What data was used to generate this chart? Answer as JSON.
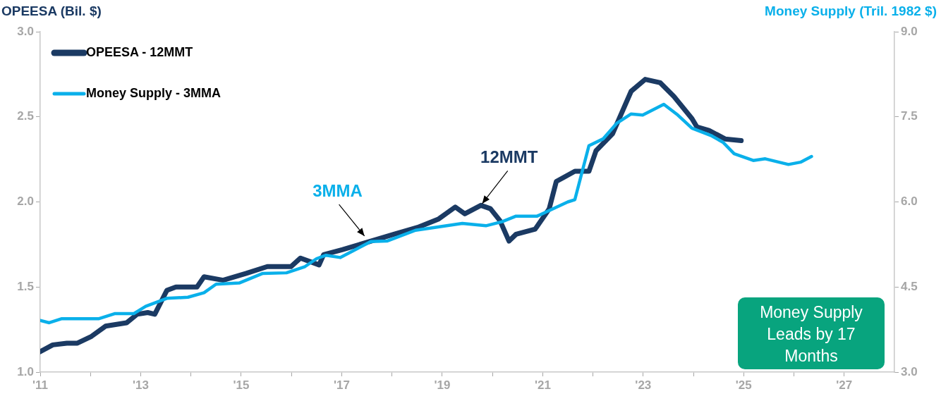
{
  "chart_data": {
    "type": "line",
    "ylabel": "OPEESA (Bil. $)",
    "y2label": "Money Supply (Tril. 1982 $)",
    "xlim": [
      2011,
      2028
    ],
    "xticks": [
      {
        "value": 2011,
        "label": "'11"
      },
      {
        "value": 2012,
        "label": null
      },
      {
        "value": 2013,
        "label": "'13"
      },
      {
        "value": 2014,
        "label": null
      },
      {
        "value": 2015,
        "label": "'15"
      },
      {
        "value": 2016,
        "label": null
      },
      {
        "value": 2017,
        "label": "'17"
      },
      {
        "value": 2018,
        "label": null
      },
      {
        "value": 2019,
        "label": "'19"
      },
      {
        "value": 2020,
        "label": null
      },
      {
        "value": 2021,
        "label": "'21"
      },
      {
        "value": 2022,
        "label": null
      },
      {
        "value": 2023,
        "label": "'23"
      },
      {
        "value": 2024,
        "label": null
      },
      {
        "value": 2025,
        "label": "'25"
      },
      {
        "value": 2026,
        "label": null
      },
      {
        "value": 2027,
        "label": "'27"
      }
    ],
    "ylim": [
      1.0,
      3.0
    ],
    "yticks": [
      {
        "value": 1.0,
        "label": "1.0"
      },
      {
        "value": 1.5,
        "label": "1.5"
      },
      {
        "value": 2.0,
        "label": "2.0"
      },
      {
        "value": 2.5,
        "label": "2.5"
      },
      {
        "value": 3.0,
        "label": "3.0"
      }
    ],
    "y2lim": [
      3.0,
      9.0
    ],
    "y2ticks": [
      {
        "value": 3.0,
        "label": "3.0"
      },
      {
        "value": 4.5,
        "label": "4.5"
      },
      {
        "value": 6.0,
        "label": "6.0"
      },
      {
        "value": 7.5,
        "label": "7.5"
      },
      {
        "value": 9.0,
        "label": "9.0"
      }
    ],
    "legend": "top left",
    "grid": false,
    "series": [
      {
        "name": "OPEESA - 12MMT",
        "color": "#1b3a63",
        "x": [
          2011.0,
          2011.25,
          2011.53,
          2011.74,
          2012.02,
          2012.3,
          2012.72,
          2012.93,
          2013.14,
          2013.28,
          2013.52,
          2013.7,
          2014.12,
          2014.26,
          2014.64,
          2015.1,
          2015.52,
          2015.99,
          2016.18,
          2016.55,
          2016.64,
          2017.02,
          2018.04,
          2018.51,
          2018.93,
          2019.26,
          2019.45,
          2019.77,
          2019.96,
          2020.15,
          2020.33,
          2020.47,
          2020.85,
          2021.13,
          2021.27,
          2021.64,
          2021.92,
          2022.06,
          2022.39,
          2022.76,
          2023.04,
          2023.34,
          2023.61,
          2023.97,
          2024.07,
          2024.31,
          2024.63,
          2024.95
        ],
        "values": [
          1.12,
          1.16,
          1.17,
          1.17,
          1.21,
          1.27,
          1.29,
          1.34,
          1.35,
          1.34,
          1.48,
          1.5,
          1.5,
          1.56,
          1.54,
          1.58,
          1.62,
          1.62,
          1.67,
          1.63,
          1.69,
          1.72,
          1.81,
          1.85,
          1.9,
          1.97,
          1.93,
          1.98,
          1.96,
          1.89,
          1.77,
          1.81,
          1.84,
          1.96,
          2.12,
          2.18,
          2.18,
          2.3,
          2.4,
          2.65,
          2.72,
          2.7,
          2.62,
          2.49,
          2.44,
          2.42,
          2.37,
          2.36
        ]
      },
      {
        "name": "Money Supply - 3MMA",
        "color": "#0ab0ea",
        "axis": "y2",
        "x": [
          2011.0,
          2011.18,
          2011.42,
          2012.16,
          2012.48,
          2012.86,
          2013.1,
          2013.52,
          2013.94,
          2014.26,
          2014.5,
          2014.96,
          2015.43,
          2015.9,
          2016.27,
          2016.5,
          2016.69,
          2016.97,
          2017.58,
          2017.9,
          2018.47,
          2019.4,
          2019.87,
          2020.19,
          2020.47,
          2020.89,
          2021.5,
          2021.64,
          2021.92,
          2022.2,
          2022.48,
          2022.76,
          2022.99,
          2023.41,
          2023.69,
          2023.97,
          2024.35,
          2024.59,
          2024.81,
          2025.19,
          2025.43,
          2025.89,
          2026.13,
          2026.35
        ],
        "values": [
          3.91,
          3.87,
          3.94,
          3.94,
          4.03,
          4.03,
          4.16,
          4.3,
          4.32,
          4.4,
          4.55,
          4.57,
          4.74,
          4.75,
          4.86,
          5.0,
          5.06,
          5.02,
          5.3,
          5.31,
          5.5,
          5.62,
          5.58,
          5.65,
          5.75,
          5.75,
          6.0,
          6.04,
          6.99,
          7.11,
          7.39,
          7.55,
          7.53,
          7.72,
          7.53,
          7.3,
          7.17,
          7.05,
          6.85,
          6.73,
          6.76,
          6.66,
          6.7,
          6.8
        ]
      }
    ],
    "annotations": [
      {
        "text": "12MMT",
        "x": 2019.77,
        "y": 1.98
      },
      {
        "text": "3MMA",
        "x": 2017.48,
        "y": 1.79
      },
      "Money Supply Leads by 17 Months"
    ]
  }
}
